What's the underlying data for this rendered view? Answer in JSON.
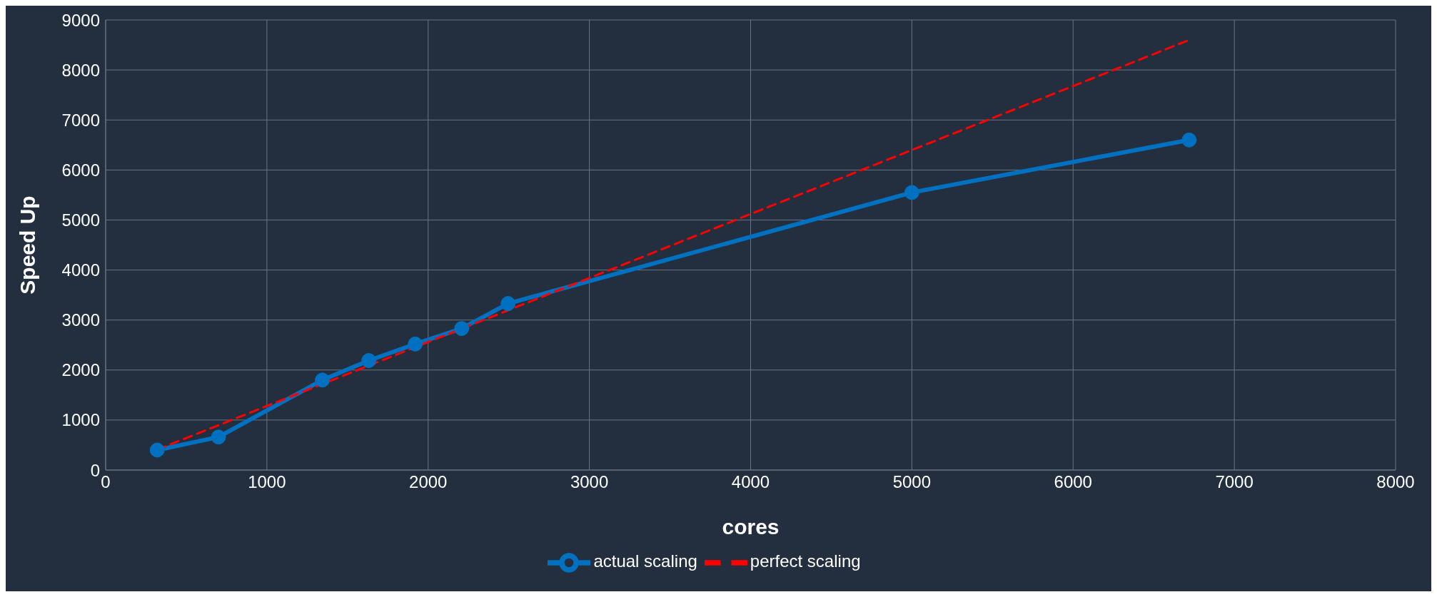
{
  "chart_data": {
    "type": "line",
    "xlabel": "cores",
    "ylabel": "Speed Up",
    "xlim": [
      0,
      8000
    ],
    "xticks": [
      0,
      1000,
      2000,
      3000,
      4000,
      5000,
      6000,
      7000,
      8000
    ],
    "ylim": [
      0,
      9000
    ],
    "yticks": [
      0,
      1000,
      2000,
      3000,
      4000,
      5000,
      6000,
      7000,
      8000,
      9000
    ],
    "grid": true,
    "legend": "bottom",
    "series": [
      {
        "name": "actual scaling",
        "color": "#0070c0",
        "marker": "circle",
        "line_style": "solid",
        "x": [
          320,
          700,
          1344,
          1632,
          1920,
          2208,
          2496,
          5000,
          6720
        ],
        "values": [
          400,
          660,
          1800,
          2190,
          2520,
          2830,
          3330,
          5550,
          6600
        ]
      },
      {
        "name": "perfect scaling",
        "color": "#ff0000",
        "marker": "none",
        "line_style": "dashed",
        "x": [
          320,
          6720
        ],
        "values": [
          410,
          8600
        ]
      }
    ]
  }
}
